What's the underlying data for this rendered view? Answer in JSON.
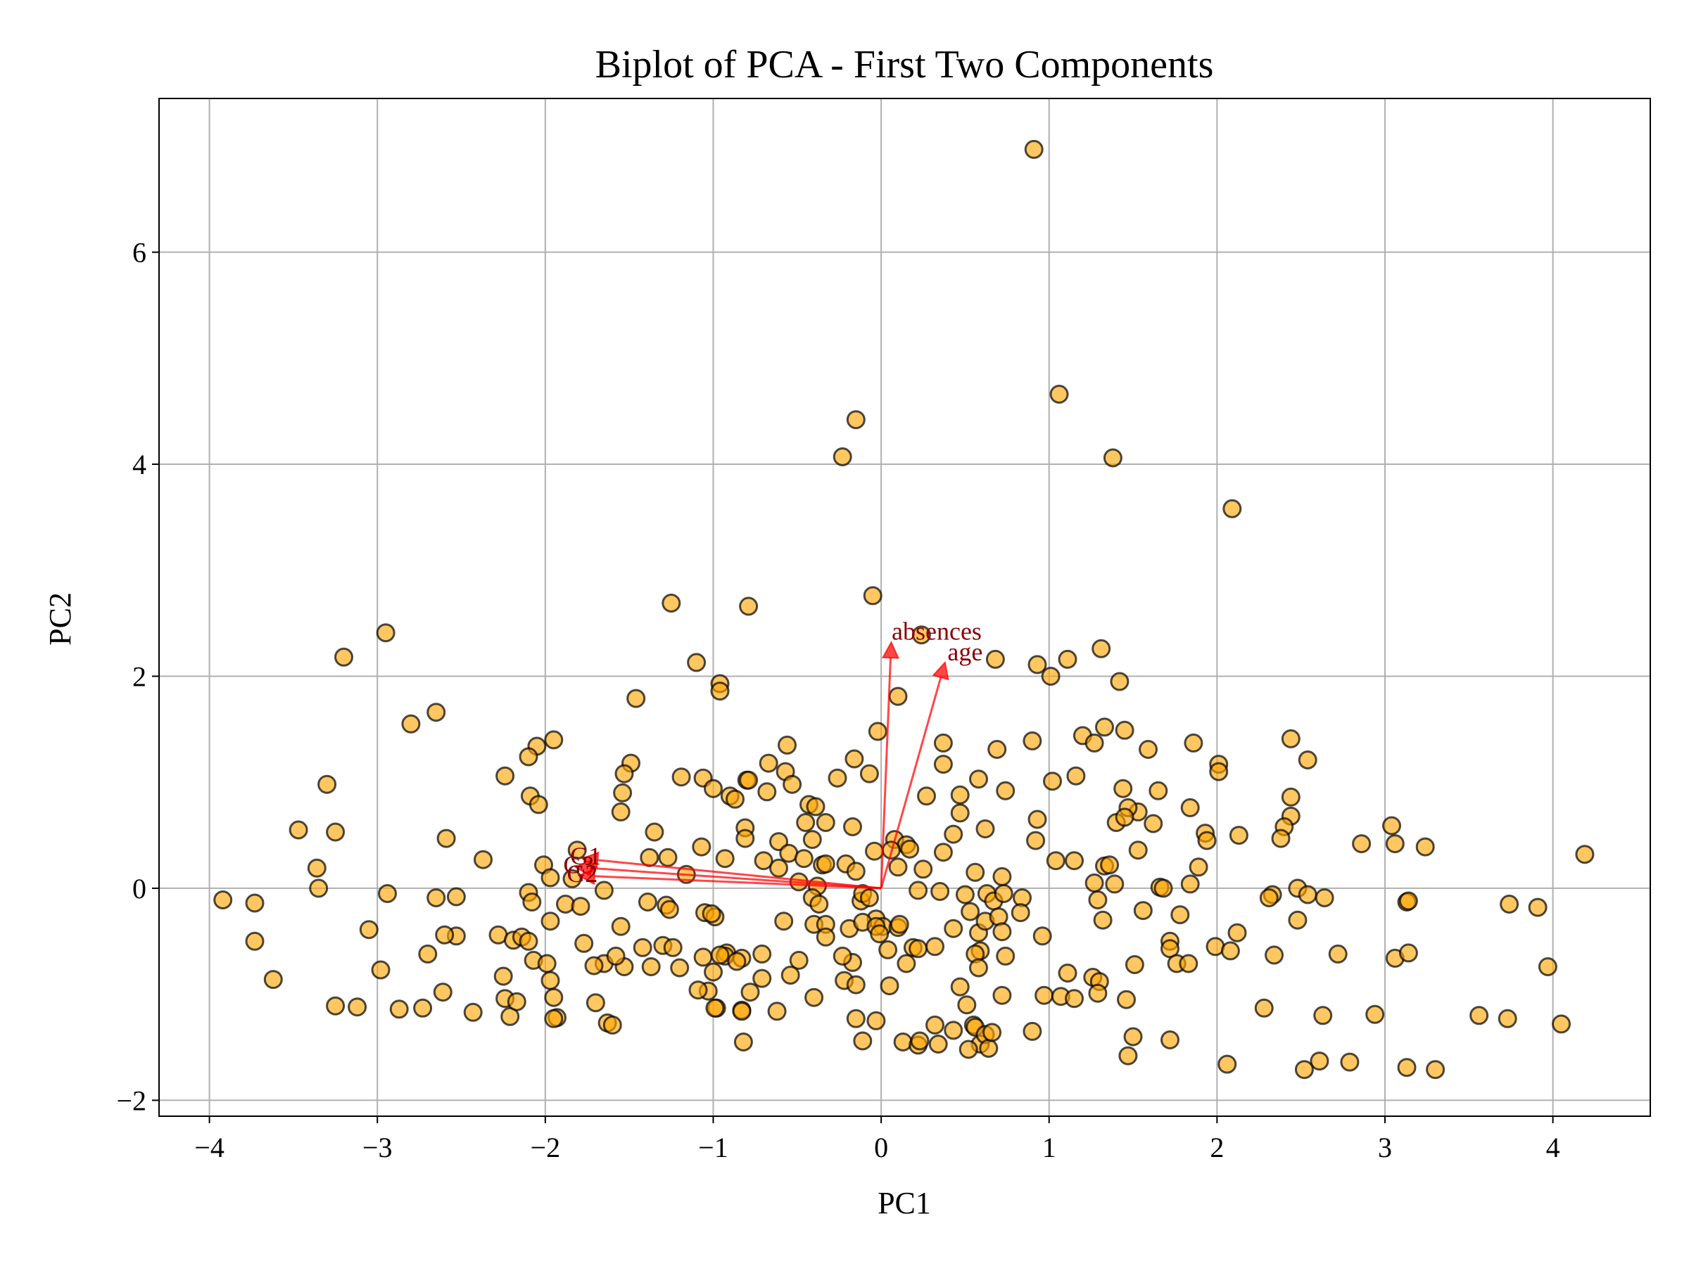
{
  "chart_data": {
    "type": "scatter",
    "title": "Biplot of PCA - First Two Components",
    "xlabel": "PC1",
    "ylabel": "PC2",
    "xlim": [
      -4.3,
      4.58
    ],
    "ylim": [
      -2.15,
      7.45
    ],
    "xticks": [
      -4,
      -3,
      -2,
      -1,
      0,
      1,
      2,
      3,
      4
    ],
    "xtick_labels": [
      "−4",
      "−3",
      "−2",
      "−1",
      "0",
      "1",
      "2",
      "3",
      "4"
    ],
    "yticks": [
      -2,
      0,
      2,
      4,
      6
    ],
    "ytick_labels": [
      "−2",
      "0",
      "2",
      "4",
      "6"
    ],
    "grid": true,
    "colors": {
      "point_fill": "#ffa500",
      "point_edge": "#000000",
      "arrow": "#ff0000",
      "arrow_label": "#8b0000"
    },
    "loadings": [
      {
        "name": "absences",
        "x": 0.06,
        "y": 2.32
      },
      {
        "name": "age",
        "x": 0.38,
        "y": 2.13
      },
      {
        "name": "G1",
        "x": -1.78,
        "y": 0.28
      },
      {
        "name": "G3",
        "x": -1.82,
        "y": 0.2
      },
      {
        "name": "G2",
        "x": -1.8,
        "y": 0.12
      }
    ],
    "points": [
      [
        0.91,
        6.97
      ],
      [
        1.06,
        4.66
      ],
      [
        -0.15,
        4.42
      ],
      [
        -0.23,
        4.07
      ],
      [
        1.38,
        4.06
      ],
      [
        2.09,
        3.58
      ],
      [
        -0.05,
        2.76
      ],
      [
        -1.25,
        2.69
      ],
      [
        -0.79,
        2.66
      ],
      [
        0.24,
        2.39
      ],
      [
        -2.95,
        2.41
      ],
      [
        -3.2,
        2.18
      ],
      [
        -1.1,
        2.13
      ],
      [
        0.68,
        2.16
      ],
      [
        0.93,
        2.11
      ],
      [
        1.11,
        2.16
      ],
      [
        1.31,
        2.26
      ],
      [
        1.01,
        2.0
      ],
      [
        -0.96,
        1.93
      ],
      [
        -0.96,
        1.86
      ],
      [
        0.1,
        1.81
      ],
      [
        1.42,
        1.95
      ],
      [
        -1.46,
        1.79
      ],
      [
        -2.65,
        1.66
      ],
      [
        -2.8,
        1.55
      ],
      [
        1.33,
        1.52
      ],
      [
        -1.95,
        1.4
      ],
      [
        -2.05,
        1.34
      ],
      [
        -2.1,
        1.24
      ],
      [
        -0.02,
        1.48
      ],
      [
        0.37,
        1.37
      ],
      [
        0.69,
        1.31
      ],
      [
        0.9,
        1.39
      ],
      [
        1.2,
        1.44
      ],
      [
        1.27,
        1.37
      ],
      [
        1.45,
        1.49
      ],
      [
        1.59,
        1.31
      ],
      [
        1.86,
        1.37
      ],
      [
        2.44,
        1.41
      ],
      [
        2.54,
        1.21
      ],
      [
        2.01,
        1.17
      ],
      [
        2.01,
        1.1
      ],
      [
        -0.56,
        1.35
      ],
      [
        -0.67,
        1.18
      ],
      [
        -0.57,
        1.1
      ],
      [
        -0.53,
        0.98
      ],
      [
        -0.16,
        1.22
      ],
      [
        -0.07,
        1.08
      ],
      [
        0.58,
        1.03
      ],
      [
        0.37,
        1.17
      ],
      [
        1.02,
        1.01
      ],
      [
        1.16,
        1.06
      ],
      [
        -1.49,
        1.18
      ],
      [
        -1.53,
        1.08
      ],
      [
        -2.24,
        1.06
      ],
      [
        -1.19,
        1.05
      ],
      [
        -1.06,
        1.04
      ],
      [
        -0.8,
        1.02
      ],
      [
        -0.79,
        1.02
      ],
      [
        -0.26,
        1.04
      ],
      [
        -3.3,
        0.98
      ],
      [
        -1.54,
        0.9
      ],
      [
        -1.0,
        0.94
      ],
      [
        -0.9,
        0.87
      ],
      [
        -0.87,
        0.84
      ],
      [
        -0.68,
        0.91
      ],
      [
        -0.43,
        0.79
      ],
      [
        -0.39,
        0.77
      ],
      [
        0.27,
        0.87
      ],
      [
        0.47,
        0.88
      ],
      [
        0.74,
        0.92
      ],
      [
        1.44,
        0.94
      ],
      [
        1.65,
        0.92
      ],
      [
        2.44,
        0.86
      ],
      [
        -2.09,
        0.87
      ],
      [
        -2.04,
        0.79
      ],
      [
        1.53,
        0.72
      ],
      [
        1.47,
        0.76
      ],
      [
        1.84,
        0.76
      ],
      [
        2.44,
        0.68
      ],
      [
        -1.55,
        0.72
      ],
      [
        -0.45,
        0.62
      ],
      [
        -0.33,
        0.62
      ],
      [
        -0.17,
        0.58
      ],
      [
        0.08,
        0.46
      ],
      [
        0.47,
        0.71
      ],
      [
        0.62,
        0.56
      ],
      [
        0.92,
        0.45
      ],
      [
        0.93,
        0.65
      ],
      [
        1.4,
        0.62
      ],
      [
        1.45,
        0.67
      ],
      [
        1.62,
        0.61
      ],
      [
        2.4,
        0.58
      ],
      [
        2.38,
        0.47
      ],
      [
        3.04,
        0.59
      ],
      [
        3.06,
        0.42
      ],
      [
        3.24,
        0.39
      ],
      [
        4.19,
        0.32
      ],
      [
        -3.47,
        0.55
      ],
      [
        -3.25,
        0.53
      ],
      [
        -2.59,
        0.47
      ],
      [
        -1.35,
        0.53
      ],
      [
        -0.81,
        0.57
      ],
      [
        -0.81,
        0.47
      ],
      [
        -0.7,
        0.26
      ],
      [
        -0.61,
        0.44
      ],
      [
        -0.55,
        0.33
      ],
      [
        -0.46,
        0.28
      ],
      [
        -0.41,
        0.46
      ],
      [
        -0.35,
        0.22
      ],
      [
        -0.21,
        0.23
      ],
      [
        -0.04,
        0.35
      ],
      [
        0.15,
        0.41
      ],
      [
        0.43,
        0.51
      ],
      [
        0.37,
        0.34
      ],
      [
        0.17,
        0.37
      ],
      [
        1.53,
        0.36
      ],
      [
        1.93,
        0.52
      ],
      [
        1.94,
        0.45
      ],
      [
        2.13,
        0.5
      ],
      [
        2.86,
        0.42
      ],
      [
        -3.36,
        0.19
      ],
      [
        -2.37,
        0.27
      ],
      [
        -2.01,
        0.22
      ],
      [
        -1.97,
        0.1
      ],
      [
        -1.84,
        0.09
      ],
      [
        -1.81,
        0.36
      ],
      [
        -1.38,
        0.29
      ],
      [
        -1.27,
        0.29
      ],
      [
        -1.16,
        0.13
      ],
      [
        -1.07,
        0.39
      ],
      [
        -0.93,
        0.28
      ],
      [
        -0.61,
        0.19
      ],
      [
        -0.49,
        0.06
      ],
      [
        -0.38,
        0.02
      ],
      [
        -0.33,
        0.23
      ],
      [
        -0.15,
        0.16
      ],
      [
        0.06,
        0.36
      ],
      [
        0.1,
        0.2
      ],
      [
        0.25,
        0.18
      ],
      [
        0.56,
        0.15
      ],
      [
        0.72,
        0.11
      ],
      [
        1.04,
        0.26
      ],
      [
        1.15,
        0.26
      ],
      [
        1.27,
        0.05
      ],
      [
        1.33,
        0.21
      ],
      [
        1.36,
        0.22
      ],
      [
        1.39,
        0.04
      ],
      [
        1.66,
        0.01
      ],
      [
        1.68,
        0.0
      ],
      [
        1.84,
        0.04
      ],
      [
        1.89,
        0.2
      ],
      [
        2.33,
        -0.06
      ],
      [
        2.31,
        -0.09
      ],
      [
        2.48,
        0.0
      ],
      [
        2.54,
        -0.06
      ],
      [
        2.64,
        -0.09
      ],
      [
        3.13,
        -0.13
      ],
      [
        3.14,
        -0.12
      ],
      [
        3.74,
        -0.15
      ],
      [
        3.91,
        -0.18
      ],
      [
        -3.35,
        0.0
      ],
      [
        -3.92,
        -0.11
      ],
      [
        -3.73,
        -0.14
      ],
      [
        -2.65,
        -0.09
      ],
      [
        -2.53,
        -0.08
      ],
      [
        -2.1,
        -0.04
      ],
      [
        -2.08,
        -0.13
      ],
      [
        -1.88,
        -0.15
      ],
      [
        -1.79,
        -0.17
      ],
      [
        -1.65,
        -0.02
      ],
      [
        -1.28,
        -0.16
      ],
      [
        -1.26,
        -0.2
      ],
      [
        -1.39,
        -0.13
      ],
      [
        -1.05,
        -0.23
      ],
      [
        -0.99,
        -0.27
      ],
      [
        -0.41,
        -0.09
      ],
      [
        -0.37,
        -0.15
      ],
      [
        -0.12,
        -0.12
      ],
      [
        -0.11,
        -0.05
      ],
      [
        -0.07,
        -0.09
      ],
      [
        -0.03,
        -0.29
      ],
      [
        0.01,
        -0.36
      ],
      [
        0.22,
        -0.02
      ],
      [
        0.35,
        -0.03
      ],
      [
        0.5,
        -0.06
      ],
      [
        0.63,
        -0.05
      ],
      [
        0.67,
        -0.12
      ],
      [
        0.73,
        -0.05
      ],
      [
        0.84,
        -0.09
      ],
      [
        1.29,
        -0.11
      ],
      [
        1.78,
        -0.25
      ],
      [
        -2.94,
        -0.05
      ],
      [
        -2.98,
        -0.77
      ],
      [
        -3.05,
        -0.39
      ],
      [
        -3.73,
        -0.5
      ],
      [
        -3.62,
        -0.86
      ],
      [
        -2.53,
        -0.45
      ],
      [
        -2.6,
        -0.44
      ],
      [
        -2.28,
        -0.44
      ],
      [
        -2.19,
        -0.49
      ],
      [
        -2.14,
        -0.46
      ],
      [
        -2.1,
        -0.5
      ],
      [
        -1.97,
        -0.31
      ],
      [
        -1.77,
        -0.52
      ],
      [
        -1.55,
        -0.36
      ],
      [
        -1.65,
        -0.71
      ],
      [
        -1.42,
        -0.56
      ],
      [
        -1.3,
        -0.54
      ],
      [
        -1.37,
        -0.74
      ],
      [
        -1.24,
        -0.56
      ],
      [
        -1.2,
        -0.75
      ],
      [
        -1.01,
        -0.24
      ],
      [
        -0.92,
        -0.61
      ],
      [
        -0.93,
        -0.64
      ],
      [
        -0.83,
        -0.66
      ],
      [
        -0.71,
        -0.62
      ],
      [
        -0.58,
        -0.31
      ],
      [
        -0.4,
        -0.34
      ],
      [
        -0.33,
        -0.34
      ],
      [
        -0.19,
        -0.38
      ],
      [
        -0.11,
        -0.32
      ],
      [
        -0.03,
        -0.36
      ],
      [
        0.1,
        -0.37
      ],
      [
        0.11,
        -0.34
      ],
      [
        0.19,
        -0.56
      ],
      [
        0.22,
        -0.57
      ],
      [
        0.43,
        -0.38
      ],
      [
        0.53,
        -0.22
      ],
      [
        0.58,
        -0.42
      ],
      [
        0.59,
        -0.59
      ],
      [
        0.62,
        -0.31
      ],
      [
        0.7,
        -0.27
      ],
      [
        0.72,
        -0.41
      ],
      [
        0.83,
        -0.23
      ],
      [
        0.96,
        -0.45
      ],
      [
        1.32,
        -0.3
      ],
      [
        1.56,
        -0.21
      ],
      [
        1.72,
        -0.5
      ],
      [
        1.99,
        -0.55
      ],
      [
        2.08,
        -0.59
      ],
      [
        2.12,
        -0.42
      ],
      [
        2.48,
        -0.3
      ],
      [
        2.34,
        -0.63
      ],
      [
        2.72,
        -0.62
      ],
      [
        3.06,
        -0.66
      ],
      [
        3.14,
        -0.61
      ],
      [
        -2.7,
        -0.62
      ],
      [
        -2.07,
        -0.68
      ],
      [
        -1.99,
        -0.71
      ],
      [
        -1.71,
        -0.73
      ],
      [
        -1.53,
        -0.74
      ],
      [
        -1.06,
        -0.65
      ],
      [
        -0.96,
        -0.63
      ],
      [
        -0.86,
        -0.69
      ],
      [
        -0.49,
        -0.68
      ],
      [
        -0.17,
        -0.7
      ],
      [
        0.04,
        -0.58
      ],
      [
        0.15,
        -0.71
      ],
      [
        0.56,
        -0.62
      ],
      [
        0.58,
        -0.75
      ],
      [
        0.74,
        -0.64
      ],
      [
        1.11,
        -0.8
      ],
      [
        1.26,
        -0.84
      ],
      [
        1.3,
        -0.88
      ],
      [
        1.51,
        -0.72
      ],
      [
        1.72,
        -0.57
      ],
      [
        1.76,
        -0.71
      ],
      [
        1.83,
        -0.71
      ],
      [
        3.97,
        -0.74
      ],
      [
        -3.25,
        -1.11
      ],
      [
        -3.12,
        -1.12
      ],
      [
        -2.87,
        -1.14
      ],
      [
        -2.73,
        -1.13
      ],
      [
        -2.61,
        -0.98
      ],
      [
        -2.43,
        -1.17
      ],
      [
        -2.24,
        -1.04
      ],
      [
        -2.21,
        -1.21
      ],
      [
        -2.17,
        -1.07
      ],
      [
        -1.97,
        -0.87
      ],
      [
        -1.95,
        -1.03
      ],
      [
        -1.93,
        -1.22
      ],
      [
        -1.7,
        -1.08
      ],
      [
        -1.63,
        -1.27
      ],
      [
        -1.6,
        -1.29
      ],
      [
        -1.03,
        -0.97
      ],
      [
        -1.0,
        -0.79
      ],
      [
        -0.98,
        -1.13
      ],
      [
        -0.99,
        -1.13
      ],
      [
        -0.83,
        -1.15
      ],
      [
        -0.78,
        -0.98
      ],
      [
        -0.71,
        -0.85
      ],
      [
        -0.62,
        -1.16
      ],
      [
        -0.4,
        -1.03
      ],
      [
        -0.22,
        -0.87
      ],
      [
        -0.15,
        -0.91
      ],
      [
        -0.15,
        -1.23
      ],
      [
        -0.11,
        -1.44
      ],
      [
        -0.03,
        -1.25
      ],
      [
        0.05,
        -0.92
      ],
      [
        0.13,
        -1.45
      ],
      [
        0.22,
        -1.48
      ],
      [
        0.23,
        -1.44
      ],
      [
        0.32,
        -1.29
      ],
      [
        0.34,
        -1.47
      ],
      [
        0.43,
        -1.34
      ],
      [
        0.47,
        -0.93
      ],
      [
        0.51,
        -1.1
      ],
      [
        0.55,
        -1.29
      ],
      [
        0.56,
        -1.31
      ],
      [
        0.59,
        -1.47
      ],
      [
        0.62,
        -1.38
      ],
      [
        0.64,
        -1.51
      ],
      [
        0.66,
        -1.36
      ],
      [
        0.72,
        -1.01
      ],
      [
        0.52,
        -1.52
      ],
      [
        0.9,
        -1.35
      ],
      [
        0.97,
        -1.01
      ],
      [
        1.07,
        -1.02
      ],
      [
        1.15,
        -1.04
      ],
      [
        1.29,
        -0.99
      ],
      [
        1.46,
        -1.05
      ],
      [
        1.47,
        -1.58
      ],
      [
        1.5,
        -1.4
      ],
      [
        1.72,
        -1.43
      ],
      [
        2.06,
        -1.66
      ],
      [
        2.28,
        -1.13
      ],
      [
        2.61,
        -1.63
      ],
      [
        2.63,
        -1.2
      ],
      [
        2.52,
        -1.71
      ],
      [
        2.79,
        -1.64
      ],
      [
        2.94,
        -1.19
      ],
      [
        3.13,
        -1.69
      ],
      [
        3.3,
        -1.71
      ],
      [
        3.56,
        -1.2
      ],
      [
        3.73,
        -1.23
      ],
      [
        4.05,
        -1.28
      ],
      [
        -1.95,
        -1.23
      ],
      [
        -0.83,
        -1.16
      ],
      [
        -0.82,
        -1.45
      ],
      [
        -1.09,
        -0.96
      ],
      [
        -0.54,
        -0.82
      ],
      [
        -0.33,
        -0.46
      ],
      [
        -0.23,
        -0.64
      ],
      [
        -0.01,
        -0.43
      ],
      [
        0.32,
        -0.55
      ],
      [
        -1.58,
        -0.64
      ],
      [
        -2.25,
        -0.83
      ]
    ]
  }
}
